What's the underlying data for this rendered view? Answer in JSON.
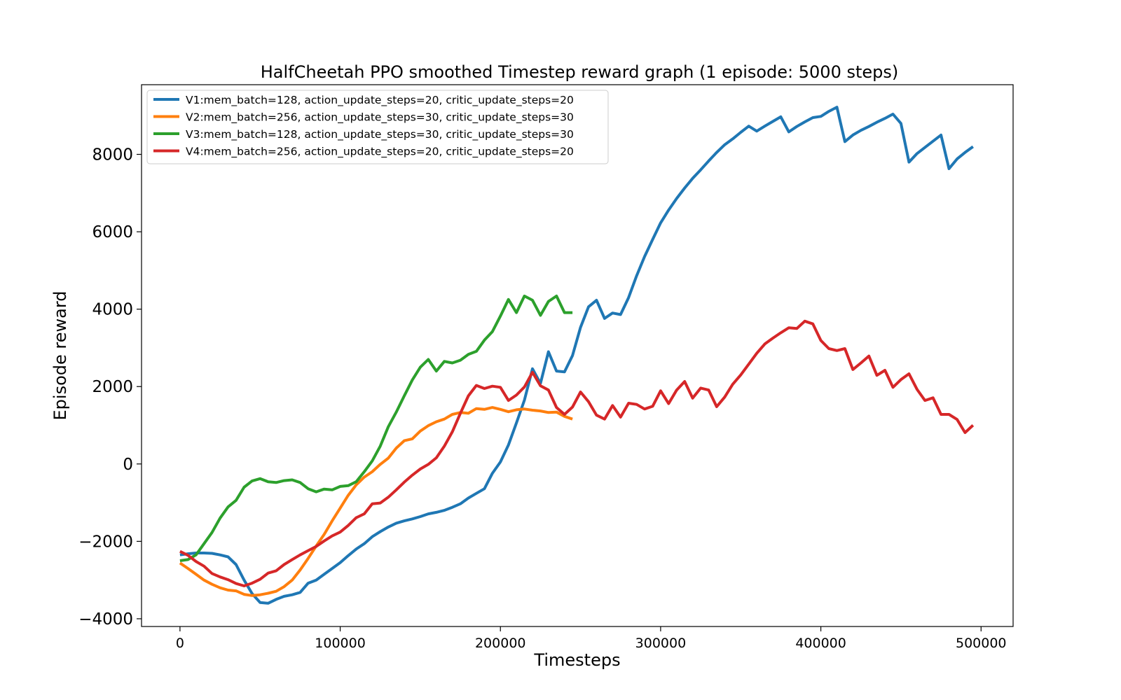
{
  "chart_data": {
    "type": "line",
    "title": "HalfCheetah PPO smoothed Timestep reward graph (1 episode: 5000 steps)",
    "xlabel": "Timesteps",
    "ylabel": "Episode reward",
    "xlim": [
      -24000,
      520000
    ],
    "ylim": [
      -4200,
      9800
    ],
    "xticks": [
      0,
      100000,
      200000,
      300000,
      400000,
      500000
    ],
    "xtick_labels": [
      "0",
      "100000",
      "200000",
      "300000",
      "400000",
      "500000"
    ],
    "yticks": [
      -4000,
      -2000,
      0,
      2000,
      4000,
      6000,
      8000
    ],
    "ytick_labels": [
      "−4000",
      "−2000",
      "0",
      "2000",
      "4000",
      "6000",
      "8000"
    ],
    "grid": false,
    "legend_position": "top-left",
    "series": [
      {
        "name": "V1:mem_batch=128, action_update_steps=20, critic_update_steps=20",
        "color": "#1f77b4",
        "x": [
          0,
          5000,
          10000,
          15000,
          20000,
          25000,
          30000,
          35000,
          40000,
          45000,
          50000,
          55000,
          60000,
          65000,
          70000,
          75000,
          80000,
          85000,
          90000,
          95000,
          100000,
          105000,
          110000,
          115000,
          120000,
          125000,
          130000,
          135000,
          140000,
          145000,
          150000,
          155000,
          160000,
          165000,
          170000,
          175000,
          180000,
          185000,
          190000,
          195000,
          200000,
          205000,
          210000,
          215000,
          220000,
          225000,
          230000,
          235000,
          240000,
          245000,
          250000,
          255000,
          260000,
          265000,
          270000,
          275000,
          280000,
          285000,
          290000,
          295000,
          300000,
          305000,
          310000,
          315000,
          320000,
          325000,
          330000,
          335000,
          340000,
          345000,
          350000,
          355000,
          360000,
          365000,
          370000,
          375000,
          380000,
          385000,
          390000,
          395000,
          400000,
          405000,
          410000,
          415000,
          420000,
          425000,
          430000,
          435000,
          440000,
          445000,
          450000,
          455000,
          460000,
          465000,
          470000,
          475000,
          480000,
          485000,
          490000,
          495000
        ],
        "y": [
          -2350,
          -2320,
          -2300,
          -2300,
          -2310,
          -2350,
          -2400,
          -2600,
          -3000,
          -3350,
          -3580,
          -3600,
          -3500,
          -3420,
          -3380,
          -3320,
          -3080,
          -3000,
          -2850,
          -2700,
          -2550,
          -2370,
          -2200,
          -2060,
          -1880,
          -1750,
          -1630,
          -1530,
          -1470,
          -1420,
          -1360,
          -1290,
          -1250,
          -1200,
          -1120,
          -1030,
          -880,
          -760,
          -640,
          -240,
          50,
          490,
          1060,
          1650,
          2460,
          2080,
          2900,
          2400,
          2380,
          2800,
          3530,
          4060,
          4230,
          3760,
          3900,
          3860,
          4300,
          4860,
          5360,
          5800,
          6230,
          6560,
          6860,
          7130,
          7380,
          7600,
          7830,
          8050,
          8250,
          8400,
          8570,
          8730,
          8600,
          8730,
          8850,
          8970,
          8580,
          8720,
          8840,
          8950,
          8980,
          9110,
          9220,
          8330,
          8500,
          8620,
          8720,
          8830,
          8930,
          9040,
          8800,
          7800,
          8020,
          8180,
          8340,
          8500,
          7630,
          7880,
          8050,
          8200
        ]
      },
      {
        "name": "V2:mem_batch=256, action_update_steps=30, critic_update_steps=30",
        "color": "#ff7f0e",
        "x": [
          0,
          5000,
          10000,
          15000,
          20000,
          25000,
          30000,
          35000,
          40000,
          45000,
          50000,
          55000,
          60000,
          65000,
          70000,
          75000,
          80000,
          85000,
          90000,
          95000,
          100000,
          105000,
          110000,
          115000,
          120000,
          125000,
          130000,
          135000,
          140000,
          145000,
          150000,
          155000,
          160000,
          165000,
          170000,
          175000,
          180000,
          185000,
          190000,
          195000,
          200000,
          205000,
          210000,
          215000,
          220000,
          225000,
          230000,
          235000,
          240000,
          245000
        ],
        "y": [
          -2560,
          -2700,
          -2850,
          -3000,
          -3110,
          -3200,
          -3260,
          -3280,
          -3370,
          -3400,
          -3380,
          -3340,
          -3290,
          -3170,
          -3000,
          -2740,
          -2440,
          -2120,
          -1820,
          -1470,
          -1140,
          -810,
          -540,
          -340,
          -200,
          -10,
          150,
          410,
          600,
          650,
          850,
          990,
          1090,
          1160,
          1280,
          1330,
          1310,
          1430,
          1410,
          1460,
          1410,
          1350,
          1400,
          1420,
          1390,
          1370,
          1330,
          1340,
          1230,
          1160
        ]
      },
      {
        "name": "V3:mem_batch=128, action_update_steps=30, critic_update_steps=30",
        "color": "#2ca02c",
        "x": [
          0,
          5000,
          10000,
          15000,
          20000,
          25000,
          30000,
          35000,
          40000,
          45000,
          50000,
          55000,
          60000,
          65000,
          70000,
          75000,
          80000,
          85000,
          90000,
          95000,
          100000,
          105000,
          110000,
          115000,
          120000,
          125000,
          130000,
          135000,
          140000,
          145000,
          150000,
          155000,
          160000,
          165000,
          170000,
          175000,
          180000,
          185000,
          190000,
          195000,
          200000,
          205000,
          210000,
          215000,
          220000,
          225000,
          230000,
          235000,
          240000,
          245000
        ],
        "y": [
          -2500,
          -2470,
          -2350,
          -2060,
          -1770,
          -1400,
          -1110,
          -940,
          -600,
          -440,
          -380,
          -460,
          -480,
          -430,
          -410,
          -480,
          -640,
          -720,
          -650,
          -670,
          -580,
          -560,
          -460,
          -200,
          80,
          460,
          960,
          1340,
          1760,
          2170,
          2500,
          2700,
          2400,
          2650,
          2610,
          2680,
          2830,
          2910,
          3200,
          3420,
          3820,
          4250,
          3910,
          4340,
          4230,
          3840,
          4200,
          4340,
          3910,
          3910
        ]
      },
      {
        "name": "V4:mem_batch=256, action_update_steps=20, critic_update_steps=20",
        "color": "#d62728",
        "x": [
          0,
          5000,
          10000,
          15000,
          20000,
          25000,
          30000,
          35000,
          40000,
          45000,
          50000,
          55000,
          60000,
          65000,
          70000,
          75000,
          80000,
          85000,
          90000,
          95000,
          100000,
          105000,
          110000,
          115000,
          120000,
          125000,
          130000,
          135000,
          140000,
          145000,
          150000,
          155000,
          160000,
          165000,
          170000,
          175000,
          180000,
          185000,
          190000,
          195000,
          200000,
          205000,
          210000,
          215000,
          220000,
          225000,
          230000,
          235000,
          240000,
          245000,
          250000,
          255000,
          260000,
          265000,
          270000,
          275000,
          280000,
          285000,
          290000,
          295000,
          300000,
          305000,
          310000,
          315000,
          320000,
          325000,
          330000,
          335000,
          340000,
          345000,
          350000,
          355000,
          360000,
          365000,
          370000,
          375000,
          380000,
          385000,
          390000,
          395000,
          400000,
          405000,
          410000,
          415000,
          420000,
          425000,
          430000,
          435000,
          440000,
          445000,
          450000,
          455000,
          460000,
          465000,
          470000,
          475000,
          480000,
          485000,
          490000,
          495000
        ],
        "y": [
          -2260,
          -2360,
          -2520,
          -2640,
          -2830,
          -2920,
          -2990,
          -3090,
          -3150,
          -3080,
          -2980,
          -2820,
          -2760,
          -2600,
          -2470,
          -2350,
          -2240,
          -2130,
          -1990,
          -1860,
          -1760,
          -1590,
          -1390,
          -1290,
          -1030,
          -1010,
          -860,
          -670,
          -470,
          -290,
          -130,
          -10,
          160,
          460,
          830,
          1310,
          1760,
          2030,
          1950,
          2010,
          1980,
          1640,
          1780,
          1990,
          2370,
          2020,
          1910,
          1460,
          1280,
          1470,
          1860,
          1610,
          1260,
          1160,
          1510,
          1210,
          1570,
          1540,
          1420,
          1490,
          1890,
          1560,
          1910,
          2130,
          1700,
          1960,
          1910,
          1480,
          1730,
          2060,
          2300,
          2580,
          2860,
          3100,
          3250,
          3390,
          3520,
          3500,
          3690,
          3620,
          3190,
          2980,
          2930,
          2980,
          2440,
          2610,
          2790,
          2290,
          2420,
          1980,
          2180,
          2330,
          1930,
          1640,
          1710,
          1280,
          1280,
          1150,
          810,
          1000
        ]
      }
    ]
  }
}
